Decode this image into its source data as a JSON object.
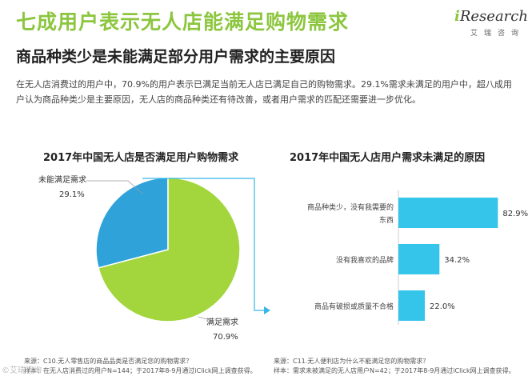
{
  "header": {
    "title": "七成用户表示无人店能满足购物需求",
    "subtitle": "商品种类少是未能满足部分用户需求的主要原因"
  },
  "logo": {
    "prefix": "i",
    "word": "Research",
    "cn": "艾瑞咨询"
  },
  "summary": "在无人店消费过的用户中，70.9%的用户表示已满足当前无人店已满足自己的购物需求。29.1%需求未满足的用户中，超八成用户认为商品种类少是主要原因，无人店的商品种类还有待改善，或者用户需求的匹配还需要进一步优化。",
  "colors": {
    "title_green": "#8cc63f",
    "pie_satisfied": "#a3d63c",
    "pie_unsatisfied": "#2fa3d9",
    "bar": "#35c4ea",
    "connector": "#35b8e6"
  },
  "chart_data": [
    {
      "type": "pie",
      "title": "2017年中国无人店是否满足用户购物需求",
      "slices": [
        {
          "label": "未能满足需求",
          "value": 29.1,
          "value_label": "29.1%"
        },
        {
          "label": "满足需求",
          "value": 70.9,
          "value_label": "70.9%"
        }
      ]
    },
    {
      "type": "bar",
      "orientation": "horizontal",
      "title": "2017年中国无人店用户需求未满足的原因",
      "categories": [
        "商品种类少，没有我需要的东西",
        "没有我喜欢的品牌",
        "商品有破损或质量不合格"
      ],
      "category_lines": [
        [
          "商品种类少，没有我需要的",
          "东西"
        ],
        [
          "没有我喜欢的品牌"
        ],
        [
          "商品有破损或质量不合格"
        ]
      ],
      "values": [
        82.9,
        34.2,
        22.0
      ],
      "value_labels": [
        "82.9%",
        "34.2%",
        "22.0%"
      ],
      "xlim": [
        0,
        100
      ]
    }
  ],
  "sources": {
    "left": {
      "line1": "来源：C10.无人零售店的商品品类是否满足您的购物需求？",
      "line2": "样本：在无人店消费过的用户N=144；于2017年8-9月通过iClick网上调查获得。"
    },
    "right": {
      "line1": "来源：C11.无人便利店为什么不能满足您的购物需求？",
      "line2": "样本：需求未被满足的无人店用户N=42；于2017年8-9月通过iClick网上调查获得。"
    }
  },
  "watermark": "©艾瑞咨询"
}
